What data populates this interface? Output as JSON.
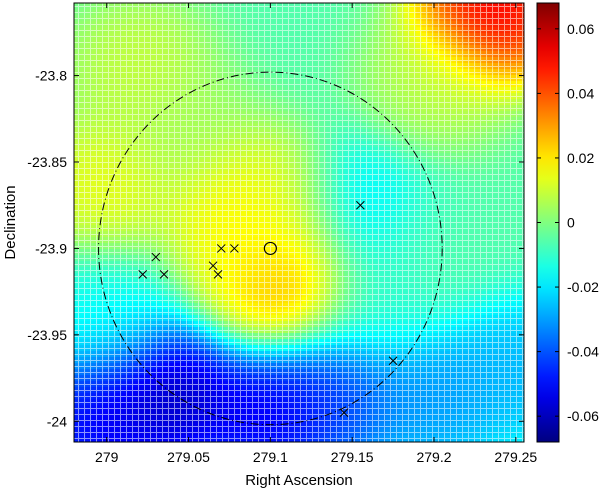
{
  "chart_data": {
    "type": "heatmap",
    "title": "",
    "xlabel": "Right Ascension",
    "ylabel": "Declination",
    "xlim": [
      278.98,
      279.255
    ],
    "ylim": [
      -24.012,
      -23.758
    ],
    "x_ticks": [
      279,
      279.05,
      279.1,
      279.15,
      279.2,
      279.25
    ],
    "x_tick_labels": [
      "279",
      "279.05",
      "279.1",
      "279.15",
      "279.2",
      "279.25"
    ],
    "y_ticks": [
      -23.8,
      -23.85,
      -23.9,
      -23.95,
      -24
    ],
    "y_tick_labels": [
      "-23.8",
      "-23.85",
      "-23.9",
      "-23.95",
      "-24"
    ],
    "colorbar": {
      "colormap": "jet",
      "range": [
        -0.068,
        0.068
      ],
      "ticks": [
        0.06,
        0.04,
        0.02,
        0,
        -0.02,
        -0.04,
        -0.06
      ],
      "tick_labels": [
        "0.06",
        "0.04",
        "0.02",
        "0",
        "-0.02",
        "-0.04",
        "-0.06"
      ]
    },
    "field_features": [
      {
        "ra": 279.235,
        "dec": -23.762,
        "value": 0.065
      },
      {
        "ra": 279.02,
        "dec": -23.795,
        "value": 0.012
      },
      {
        "ra": 279.2,
        "dec": -23.805,
        "value": 0.01
      },
      {
        "ra": 279.0,
        "dec": -23.865,
        "value": 0.018
      },
      {
        "ra": 279.083,
        "dec": -23.88,
        "value": 0.025
      },
      {
        "ra": 279.1,
        "dec": -23.873,
        "value": 0.012
      },
      {
        "ra": 279.108,
        "dec": -23.92,
        "value": 0.04
      },
      {
        "ra": 279.09,
        "dec": -23.905,
        "value": 0.012
      },
      {
        "ra": 279.05,
        "dec": -23.835,
        "value": 0.006
      },
      {
        "ra": 279.155,
        "dec": -23.878,
        "value": -0.022
      },
      {
        "ra": 279.165,
        "dec": -23.93,
        "value": -0.012
      },
      {
        "ra": 279.2,
        "dec": -23.9,
        "value": -0.006
      },
      {
        "ra": 279.04,
        "dec": -23.985,
        "value": -0.07
      },
      {
        "ra": 279.1,
        "dec": -23.995,
        "value": -0.062
      },
      {
        "ra": 279.14,
        "dec": -23.985,
        "value": -0.048
      },
      {
        "ra": 278.995,
        "dec": -24.0,
        "value": -0.06
      },
      {
        "ra": 279.2,
        "dec": -23.985,
        "value": -0.035
      },
      {
        "ra": 279.25,
        "dec": -23.97,
        "value": -0.03
      },
      {
        "ra": 279.0,
        "dec": -23.94,
        "value": -0.018
      }
    ],
    "background_value": -0.006,
    "annotations": {
      "circle": {
        "ra_center": 279.1,
        "dec_center": -23.9,
        "ra_radius": 0.105,
        "dec_radius": 0.102,
        "style": "dash-dot"
      },
      "center_marker": {
        "ra": 279.1,
        "dec": -23.9,
        "shape": "circle"
      },
      "x_markers": [
        {
          "ra": 279.03,
          "dec": -23.905
        },
        {
          "ra": 279.022,
          "dec": -23.915
        },
        {
          "ra": 279.035,
          "dec": -23.915
        },
        {
          "ra": 279.065,
          "dec": -23.91
        },
        {
          "ra": 279.07,
          "dec": -23.9
        },
        {
          "ra": 279.078,
          "dec": -23.9
        },
        {
          "ra": 279.068,
          "dec": -23.915
        },
        {
          "ra": 279.155,
          "dec": -23.875
        },
        {
          "ra": 279.175,
          "dec": -23.965
        },
        {
          "ra": 279.145,
          "dec": -23.995
        }
      ]
    }
  }
}
